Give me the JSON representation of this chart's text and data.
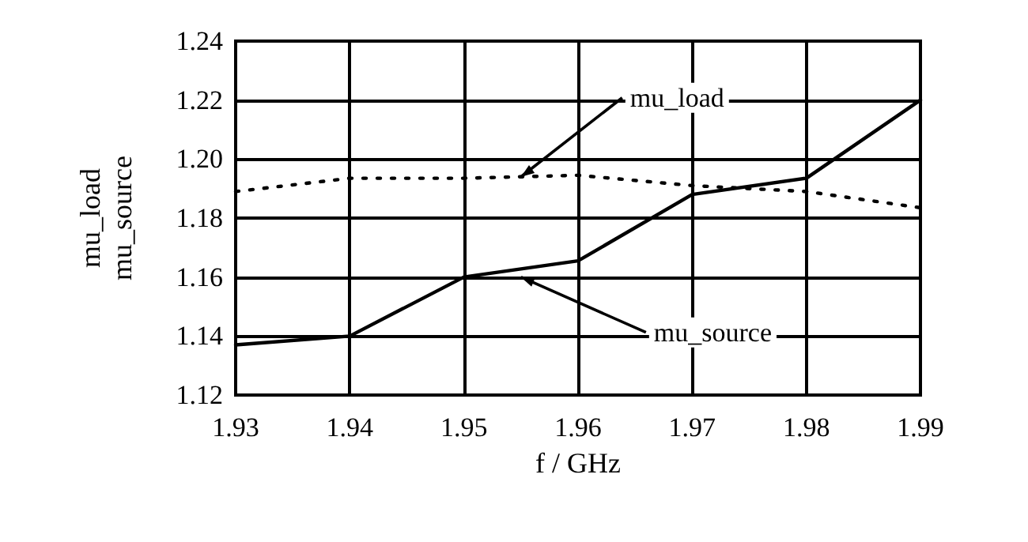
{
  "chart_data": {
    "type": "line",
    "xlabel": "f / GHz",
    "ylabel": "mu_load\nmu_source",
    "x": [
      1.93,
      1.94,
      1.95,
      1.96,
      1.97,
      1.98,
      1.99
    ],
    "series": [
      {
        "color": "#000000",
        "line_style": "solid",
        "values": [
          1.137,
          1.14,
          1.16,
          1.1655,
          1.188,
          1.1935,
          1.22
        ]
      },
      {
        "color": "#000000",
        "line_style": "dotted",
        "values": [
          1.189,
          1.1935,
          1.1935,
          1.1945,
          1.191,
          1.189,
          1.1835
        ]
      }
    ],
    "xlim": [
      1.93,
      1.99
    ],
    "xticks": [
      1.93,
      1.94,
      1.95,
      1.96,
      1.97,
      1.98,
      1.99
    ],
    "ylim": [
      1.12,
      1.24
    ],
    "yticks": [
      1.12,
      1.14,
      1.16,
      1.18,
      {
        "value": 1.2,
        "label": "1.20"
      },
      1.22,
      1.24
    ],
    "grid": true,
    "marker": "none",
    "annotations": [
      {
        "text": "mu_load",
        "x": 1.955,
        "y": 1.194
      },
      {
        "text": "mu_source",
        "x": 1.955,
        "y": 1.16
      }
    ]
  }
}
